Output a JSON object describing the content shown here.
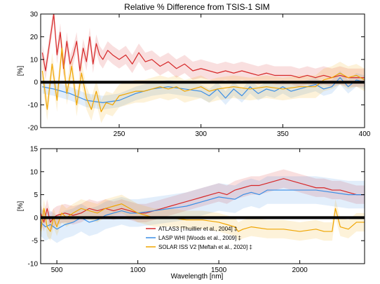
{
  "title": "Relative % Difference from TSIS-1 SIM",
  "chart_data": [
    {
      "type": "line",
      "title": "Relative % Difference from TSIS-1 SIM",
      "xlabel": "",
      "ylabel": "[%]",
      "xlim": [
        202,
        400
      ],
      "ylim": [
        -20,
        30
      ],
      "xticks": [
        250,
        300,
        350,
        400
      ],
      "yticks": [
        -20,
        -10,
        0,
        10,
        20,
        30
      ],
      "grid": false,
      "reference_line": 0,
      "series": [
        {
          "name": "ATLAS3 [Thuillier et al., 2004] ‡",
          "color": "#d62728",
          "x": [
            203,
            205,
            208,
            210,
            212,
            214,
            216,
            218,
            220,
            222,
            224,
            226,
            228,
            230,
            232,
            234,
            236,
            238,
            240,
            243,
            246,
            250,
            254,
            258,
            262,
            266,
            270,
            275,
            280,
            285,
            290,
            295,
            300,
            305,
            310,
            315,
            320,
            325,
            330,
            335,
            340,
            345,
            350,
            355,
            360,
            365,
            370,
            375,
            380,
            385,
            390,
            395,
            400
          ],
          "y": [
            13,
            5,
            20,
            30,
            12,
            22,
            6,
            18,
            8,
            12,
            18,
            5,
            15,
            9,
            20,
            8,
            17,
            12,
            10,
            14,
            12,
            10,
            12,
            8,
            13,
            9,
            10,
            7,
            9,
            6,
            8,
            5,
            6,
            5,
            4,
            5,
            4,
            5,
            4,
            3,
            4,
            3,
            3,
            3,
            2,
            3,
            2,
            3,
            2,
            3,
            2,
            2,
            2
          ],
          "band": 4
        },
        {
          "name": "LASP WHI [Woods et al., 2009] ‡",
          "color": "#3a8ee6",
          "x": [
            203,
            210,
            220,
            230,
            240,
            250,
            260,
            270,
            280,
            290,
            300,
            305,
            310,
            315,
            320,
            325,
            330,
            335,
            340,
            345,
            350,
            355,
            360,
            365,
            370,
            375,
            380,
            385,
            390,
            395,
            400
          ],
          "y": [
            -2,
            -3,
            -5,
            -8,
            -9,
            -8,
            -5,
            -3,
            -2,
            -3,
            -4,
            -6,
            -3,
            -7,
            -3,
            -6,
            -2,
            -5,
            -3,
            -4,
            -2,
            -4,
            -3,
            -2,
            -1,
            -3,
            -2,
            2,
            -2,
            1,
            0
          ],
          "band": 3
        },
        {
          "name": "SOLAR ISS V2 [Meftah et al., 2020] ‡",
          "color": "#f0a500",
          "x": [
            203,
            206,
            209,
            212,
            215,
            218,
            221,
            224,
            227,
            230,
            233,
            236,
            239,
            242,
            246,
            250,
            255,
            260,
            265,
            270,
            275,
            280,
            285,
            290,
            295,
            300,
            305,
            310,
            320,
            330,
            340,
            350,
            360,
            370,
            375,
            380,
            385,
            390,
            395,
            400
          ],
          "y": [
            5,
            -12,
            8,
            -8,
            15,
            -5,
            7,
            -10,
            4,
            -7,
            -12,
            -4,
            -13,
            -9,
            -10,
            -6,
            -5,
            -4,
            -4,
            -3,
            -2,
            -3,
            -2,
            -4,
            -3,
            -2,
            -4,
            -3,
            -2,
            -3,
            -2,
            -3,
            -2,
            -2,
            1,
            2,
            4,
            2,
            3,
            1
          ],
          "band": 5
        }
      ]
    },
    {
      "type": "line",
      "title": "",
      "xlabel": "Wavelength [nm]",
      "ylabel": "[%]",
      "xlim": [
        400,
        2400
      ],
      "ylim": [
        -10,
        15
      ],
      "xticks": [
        500,
        1000,
        1500,
        2000
      ],
      "yticks": [
        -10,
        -5,
        0,
        5,
        10,
        15
      ],
      "grid": false,
      "legend": "lower-center",
      "reference_line": 0,
      "series": [
        {
          "name": "ATLAS3 [Thuillier et al., 2004] ‡",
          "color": "#d62728",
          "x": [
            400,
            420,
            440,
            460,
            480,
            500,
            550,
            600,
            650,
            700,
            750,
            800,
            850,
            900,
            950,
            1000,
            1050,
            1100,
            1150,
            1200,
            1250,
            1300,
            1350,
            1400,
            1450,
            1500,
            1550,
            1600,
            1650,
            1700,
            1750,
            1800,
            1850,
            1900,
            1950,
            2000,
            2050,
            2100,
            2150,
            2200,
            2250,
            2300,
            2350,
            2400
          ],
          "y": [
            1,
            -1,
            2,
            -1,
            0,
            0.5,
            1,
            0.5,
            1,
            2,
            1.5,
            2,
            1.5,
            2,
            1.5,
            1,
            1,
            1.5,
            2,
            2.5,
            3,
            3.5,
            4,
            4.5,
            5,
            5.5,
            5,
            6,
            6.5,
            7,
            7,
            7.5,
            8,
            8.5,
            8,
            7.5,
            7,
            6.5,
            6.5,
            6,
            6,
            5.5,
            5,
            5
          ],
          "band": 2
        },
        {
          "name": "LASP WHI [Woods et al., 2009] ‡",
          "color": "#3a8ee6",
          "x": [
            400,
            430,
            460,
            500,
            550,
            600,
            650,
            700,
            750,
            800,
            850,
            900,
            950,
            1000,
            1100,
            1200,
            1300,
            1400,
            1500,
            1600,
            1650,
            1700,
            1750,
            1800,
            1900,
            2000,
            2100,
            2200,
            2300,
            2400
          ],
          "y": [
            -1,
            -2,
            -1.5,
            -2.5,
            -1.5,
            -1,
            0,
            -1,
            -0.5,
            0.5,
            1,
            1.5,
            1,
            1,
            1.5,
            2,
            2.5,
            3.5,
            4.5,
            4,
            5,
            5.5,
            5,
            6,
            6,
            6,
            6,
            5.5,
            5,
            5
          ],
          "band": 3
        },
        {
          "name": "SOLAR ISS V2 [Meftah et al., 2020] ‡",
          "color": "#f0a500",
          "x": [
            400,
            420,
            440,
            460,
            480,
            500,
            530,
            560,
            600,
            650,
            700,
            750,
            800,
            850,
            900,
            950,
            1000,
            1050,
            1100,
            1200,
            1300,
            1400,
            1500,
            1550,
            1600,
            1620,
            1650,
            1700,
            1800,
            1900,
            2000,
            2100,
            2150,
            2200,
            2220,
            2250,
            2300,
            2350,
            2400
          ],
          "y": [
            -3,
            2,
            -2,
            -3,
            0,
            -2,
            1,
            0,
            1,
            2,
            1.5,
            1,
            2,
            2.5,
            3,
            2,
            1,
            0.5,
            0,
            0,
            -0.5,
            -0.5,
            -1,
            -1.5,
            -2,
            -3,
            -2.5,
            -2,
            -2.5,
            -2.5,
            -3,
            -2.5,
            -3,
            -3,
            2,
            -2,
            -2.5,
            -1,
            -1
          ],
          "band": 2
        }
      ]
    }
  ]
}
